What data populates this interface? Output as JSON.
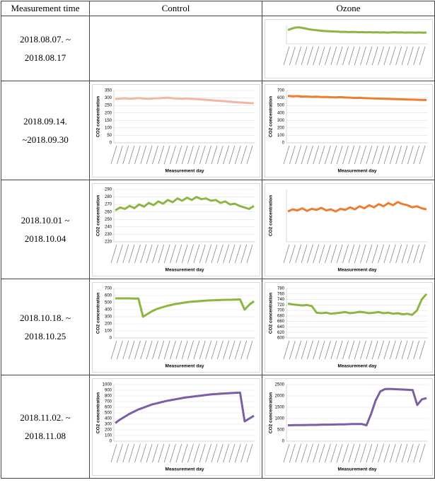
{
  "table": {
    "header": [
      "Measurement time",
      "Control",
      "Ozone"
    ],
    "rows": [
      {
        "period": "2018.08.07. ~ 2018.08.17",
        "control": null,
        "ozone": {
          "type": "line",
          "color": "#8db542",
          "ylim": [
            0,
            1000
          ],
          "grid": true,
          "values": [
            750,
            820,
            880,
            900,
            870,
            830,
            790,
            760,
            740,
            720,
            700,
            690,
            680,
            670,
            660,
            650,
            655,
            640,
            650,
            645,
            630,
            640,
            625,
            635,
            620,
            630,
            615,
            625,
            610,
            620,
            630,
            615,
            625,
            610,
            620,
            615,
            610,
            620,
            605,
            615
          ]
        }
      },
      {
        "period": "2018.09.14. ~2018.09.30",
        "control": {
          "type": "line",
          "color": "#f4b6a0",
          "ylim": [
            0,
            350
          ],
          "yticks": [
            0,
            50,
            100,
            150,
            200,
            250,
            300,
            350
          ],
          "grid": true,
          "y_label": "CO2 concentration",
          "x_label": "Measurement day",
          "values": [
            293,
            296,
            298,
            295,
            297,
            299,
            296,
            294,
            297,
            298,
            300,
            302,
            298,
            296,
            295,
            297,
            294,
            292,
            290,
            288,
            285,
            282,
            280,
            278,
            275,
            272,
            270,
            268,
            266,
            265
          ]
        },
        "ozone": {
          "type": "line",
          "color": "#ed7d31",
          "ylim": [
            0,
            700
          ],
          "yticks": [
            0,
            100,
            200,
            300,
            400,
            500,
            600,
            700
          ],
          "grid": true,
          "y_label": "CO2 concentration",
          "x_label": "Measurement day",
          "values": [
            628,
            622,
            625,
            618,
            620,
            615,
            617,
            612,
            614,
            610,
            608,
            611,
            606,
            604,
            600,
            602,
            598,
            596,
            594,
            592,
            590,
            588,
            586,
            584,
            582,
            580,
            578,
            576,
            574,
            572
          ]
        }
      },
      {
        "period": "2018.10.01 ~ 2018.10.04",
        "control": {
          "type": "line",
          "color": "#8db542",
          "ylim": [
            220,
            290
          ],
          "yticks": [
            220,
            230,
            240,
            250,
            260,
            270,
            280,
            290
          ],
          "grid": true,
          "y_label": "CO2 concentration",
          "x_label": "Measurement day",
          "values": [
            262,
            266,
            264,
            268,
            265,
            270,
            267,
            272,
            269,
            274,
            271,
            276,
            273,
            278,
            275,
            279,
            276,
            280,
            277,
            278,
            275,
            276,
            272,
            274,
            270,
            271,
            268,
            266,
            264,
            268
          ]
        },
        "ozone": {
          "type": "line",
          "color": "#ed7d31",
          "ylim": [
            200,
            300
          ],
          "grid": true,
          "y_label": "CO2 concentration",
          "x_label": "Measurement day",
          "values": [
            258,
            262,
            260,
            264,
            259,
            263,
            261,
            265,
            260,
            262,
            258,
            263,
            261,
            266,
            262,
            268,
            264,
            270,
            266,
            272,
            268,
            274,
            270,
            276,
            272,
            270,
            266,
            268,
            264,
            262
          ]
        }
      },
      {
        "period": "2018.10.18. ~ 2018.10.25",
        "control": {
          "type": "line",
          "color": "#8db542",
          "ylim": [
            0,
            700
          ],
          "yticks": [
            0,
            100,
            200,
            300,
            400,
            500,
            600,
            700
          ],
          "grid": true,
          "y_label": "CO2 concentration",
          "x_label": "Measurement day",
          "values": [
            560,
            560,
            560,
            560,
            558,
            558,
            300,
            340,
            380,
            410,
            430,
            450,
            465,
            480,
            490,
            500,
            510,
            515,
            520,
            525,
            530,
            532,
            535,
            538,
            540,
            540,
            542,
            545,
            400,
            470,
            520
          ]
        },
        "ozone": {
          "type": "line",
          "color": "#8db542",
          "ylim": [
            600,
            780
          ],
          "yticks": [
            600,
            620,
            640,
            660,
            680,
            700,
            720,
            740,
            760,
            780
          ],
          "grid": true,
          "y_label": "CO2 concentration",
          "x_label": "Measurement day",
          "values": [
            725,
            722,
            720,
            718,
            720,
            716,
            692,
            690,
            692,
            688,
            690,
            692,
            694,
            690,
            692,
            695,
            693,
            690,
            692,
            694,
            690,
            692,
            688,
            690,
            686,
            688,
            684,
            700,
            740,
            760
          ]
        }
      },
      {
        "period": "2018.11.02. ~ 2018.11.08",
        "control": {
          "type": "line",
          "color": "#7b5ea7",
          "ylim": [
            0,
            1000
          ],
          "yticks": [
            0,
            100,
            200,
            300,
            400,
            500,
            600,
            700,
            800,
            900,
            1000
          ],
          "grid": true,
          "y_label": "CO2 concentration",
          "x_label": "Measurement day",
          "values": [
            320,
            380,
            430,
            480,
            520,
            560,
            590,
            620,
            650,
            670,
            690,
            710,
            725,
            740,
            755,
            770,
            780,
            790,
            800,
            810,
            820,
            830,
            835,
            840,
            845,
            850,
            855,
            860,
            350,
            400,
            450
          ]
        },
        "ozone": {
          "type": "line",
          "color": "#7b5ea7",
          "ylim": [
            0,
            2500
          ],
          "yticks": [
            0,
            500,
            1000,
            1500,
            2000,
            2500
          ],
          "grid": true,
          "y_label": "CO2 concentration",
          "x_label": "Measurement day",
          "values": [
            700,
            705,
            710,
            710,
            715,
            720,
            720,
            725,
            730,
            730,
            735,
            740,
            745,
            750,
            755,
            760,
            760,
            700,
            1200,
            1800,
            2200,
            2300,
            2310,
            2300,
            2290,
            2280,
            2270,
            2260,
            1600,
            1850,
            1900
          ]
        }
      }
    ]
  }
}
